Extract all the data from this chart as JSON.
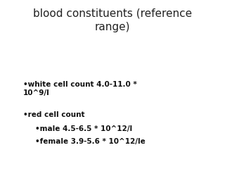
{
  "title": "blood constituents (reference\nrange)",
  "title_fontsize": 11,
  "title_color": "#222222",
  "background_color": "#ffffff",
  "bullet1_text": "•white cell count 4.0-11.0 *\n10^9/l",
  "bullet2_text": "•red cell count",
  "bullet2_sub1": "•male 4.5-6.5 * 10^12/l",
  "bullet2_sub2": "•female 3.9-5.6 * 10^12/le",
  "text_color": "#111111",
  "fontsize": 7.5,
  "fig_width": 3.2,
  "fig_height": 2.4,
  "dpi": 100
}
